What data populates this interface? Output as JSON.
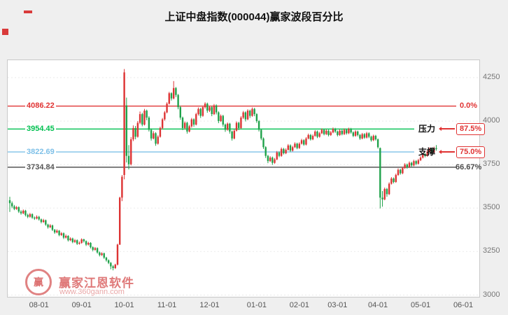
{
  "watermark": {
    "logo_text": "赢",
    "brand": "赢家江恩软件",
    "url": "www.360gann.com"
  },
  "chart_data": {
    "type": "candlestick",
    "title": "上证中盘指数(000044)赢家波段百分比",
    "y_ticks": [
      4250,
      4000,
      3750,
      3500,
      3250,
      3000
    ],
    "ylim": [
      2990,
      4350
    ],
    "x_ticks": {
      "labels": [
        "08-01",
        "09-01",
        "10-01",
        "11-01",
        "12-01",
        "01-01",
        "02-01",
        "03-01",
        "04-01",
        "05-01",
        "06-01"
      ],
      "candle_indices": [
        13,
        32,
        51,
        70,
        89,
        110,
        129,
        146,
        164,
        183,
        202
      ]
    },
    "up_color": "#dd3333",
    "down_color": "#1fa24a",
    "levels": [
      {
        "value": 4086.22,
        "label": "4086.22",
        "color": "#e03333",
        "right_label": "0.0%",
        "right_color": "#e03333",
        "annotation": null
      },
      {
        "value": 3954.45,
        "label": "3954.45",
        "color": "#00c050",
        "right_label": "87.5%",
        "right_color": "#e03333",
        "annotation": "压力"
      },
      {
        "value": 3822.69,
        "label": "3822.69",
        "color": "#7ec0e8",
        "right_label": "75.0%",
        "right_color": "#e03333",
        "annotation": "支撑"
      },
      {
        "value": 3734.84,
        "label": "3734.84",
        "color": "#555555",
        "right_label": "66.67%",
        "right_color": "#4a4a4a",
        "annotation": null
      }
    ],
    "ohlc": [
      [
        3545,
        3565,
        3478,
        3528
      ],
      [
        3528,
        3538,
        3500,
        3510
      ],
      [
        3510,
        3518,
        3488,
        3495
      ],
      [
        3495,
        3512,
        3490,
        3505
      ],
      [
        3505,
        3510,
        3472,
        3480
      ],
      [
        3480,
        3488,
        3462,
        3470
      ],
      [
        3470,
        3492,
        3465,
        3485
      ],
      [
        3485,
        3490,
        3452,
        3460
      ],
      [
        3460,
        3468,
        3442,
        3450
      ],
      [
        3450,
        3472,
        3445,
        3465
      ],
      [
        3465,
        3470,
        3438,
        3445
      ],
      [
        3445,
        3452,
        3432,
        3440
      ],
      [
        3440,
        3458,
        3435,
        3450
      ],
      [
        3450,
        3455,
        3428,
        3435
      ],
      [
        3435,
        3440,
        3412,
        3420
      ],
      [
        3420,
        3438,
        3415,
        3430
      ],
      [
        3430,
        3434,
        3398,
        3405
      ],
      [
        3405,
        3410,
        3382,
        3390
      ],
      [
        3390,
        3408,
        3385,
        3400
      ],
      [
        3400,
        3405,
        3368,
        3375
      ],
      [
        3375,
        3380,
        3352,
        3360
      ],
      [
        3360,
        3378,
        3355,
        3370
      ],
      [
        3370,
        3374,
        3338,
        3345
      ],
      [
        3345,
        3362,
        3340,
        3355
      ],
      [
        3355,
        3360,
        3322,
        3330
      ],
      [
        3330,
        3348,
        3325,
        3340
      ],
      [
        3340,
        3344,
        3308,
        3315
      ],
      [
        3315,
        3332,
        3310,
        3325
      ],
      [
        3325,
        3330,
        3298,
        3305
      ],
      [
        3305,
        3322,
        3300,
        3315
      ],
      [
        3315,
        3320,
        3288,
        3295
      ],
      [
        3295,
        3308,
        3290,
        3300
      ],
      [
        3300,
        3326,
        3295,
        3320
      ],
      [
        3320,
        3324,
        3302,
        3310
      ],
      [
        3310,
        3314,
        3282,
        3290
      ],
      [
        3290,
        3306,
        3285,
        3300
      ],
      [
        3300,
        3304,
        3268,
        3275
      ],
      [
        3275,
        3280,
        3252,
        3260
      ],
      [
        3260,
        3276,
        3255,
        3270
      ],
      [
        3270,
        3274,
        3238,
        3245
      ],
      [
        3245,
        3250,
        3222,
        3230
      ],
      [
        3230,
        3246,
        3225,
        3240
      ],
      [
        3240,
        3244,
        3208,
        3215
      ],
      [
        3215,
        3220,
        3192,
        3200
      ],
      [
        3200,
        3205,
        3178,
        3185
      ],
      [
        3185,
        3190,
        3148,
        3165
      ],
      [
        3165,
        3172,
        3142,
        3155
      ],
      [
        3155,
        3180,
        3150,
        3175
      ],
      [
        3175,
        3295,
        3170,
        3290
      ],
      [
        3290,
        3565,
        3288,
        3560
      ],
      [
        3560,
        3690,
        3540,
        3680
      ],
      [
        3690,
        4299,
        3665,
        4280
      ],
      [
        4090,
        4135,
        3762,
        3800
      ],
      [
        3800,
        3862,
        3722,
        3752
      ],
      [
        3752,
        3908,
        3745,
        3895
      ],
      [
        3895,
        3975,
        3885,
        3960
      ],
      [
        3960,
        3972,
        3895,
        3910
      ],
      [
        3910,
        4000,
        3905,
        3990
      ],
      [
        3990,
        4055,
        3982,
        4040
      ],
      [
        4040,
        4048,
        3970,
        3980
      ],
      [
        3980,
        4070,
        3975,
        4060
      ],
      [
        4060,
        4066,
        4005,
        4020
      ],
      [
        4020,
        4028,
        3940,
        3950
      ],
      [
        3950,
        3958,
        3888,
        3900
      ],
      [
        3900,
        3942,
        3895,
        3930
      ],
      [
        3930,
        3936,
        3858,
        3870
      ],
      [
        3870,
        3918,
        3865,
        3910
      ],
      [
        3910,
        3968,
        3905,
        3960
      ],
      [
        3960,
        4018,
        3952,
        4010
      ],
      [
        4010,
        4058,
        4002,
        4050
      ],
      [
        4050,
        4108,
        4045,
        4100
      ],
      [
        4100,
        4168,
        4095,
        4160
      ],
      [
        4160,
        4166,
        4118,
        4130
      ],
      [
        4130,
        4230,
        4125,
        4190
      ],
      [
        4190,
        4196,
        4138,
        4150
      ],
      [
        4150,
        4156,
        4068,
        4080
      ],
      [
        4080,
        4088,
        4008,
        4020
      ],
      [
        4020,
        4026,
        3948,
        3960
      ],
      [
        3960,
        3998,
        3952,
        3990
      ],
      [
        3990,
        3996,
        3928,
        3940
      ],
      [
        3940,
        3978,
        3935,
        3970
      ],
      [
        3970,
        4018,
        3962,
        4010
      ],
      [
        4010,
        4016,
        3968,
        3980
      ],
      [
        3980,
        4048,
        3975,
        4040
      ],
      [
        4040,
        4078,
        4032,
        4070
      ],
      [
        4070,
        4076,
        4018,
        4030
      ],
      [
        4030,
        4088,
        4025,
        4080
      ],
      [
        4080,
        4108,
        4072,
        4100
      ],
      [
        4100,
        4106,
        4048,
        4060
      ],
      [
        4060,
        4088,
        4052,
        4080
      ],
      [
        4080,
        4086,
        4028,
        4040
      ],
      [
        4040,
        4098,
        4035,
        4090
      ],
      [
        4090,
        4096,
        4038,
        4050
      ],
      [
        4050,
        4056,
        3988,
        4000
      ],
      [
        4000,
        4038,
        3995,
        4030
      ],
      [
        4030,
        4036,
        3968,
        3980
      ],
      [
        3980,
        3986,
        3938,
        3950
      ],
      [
        3950,
        3992,
        3945,
        3985
      ],
      [
        3985,
        3990,
        3928,
        3940
      ],
      [
        3940,
        3946,
        3888,
        3900
      ],
      [
        3900,
        3952,
        3895,
        3945
      ],
      [
        3945,
        3998,
        3940,
        3990
      ],
      [
        3990,
        3996,
        3948,
        3960
      ],
      [
        3960,
        4028,
        3955,
        4020
      ],
      [
        4020,
        4058,
        4012,
        4050
      ],
      [
        4050,
        4056,
        3998,
        4010
      ],
      [
        4010,
        4068,
        4005,
        4060
      ],
      [
        4060,
        4066,
        4018,
        4030
      ],
      [
        4030,
        4078,
        4025,
        4070
      ],
      [
        4070,
        4076,
        4028,
        4040
      ],
      [
        4040,
        4046,
        3990,
        4000
      ],
      [
        4000,
        4006,
        3940,
        3950
      ],
      [
        3950,
        3956,
        3890,
        3900
      ],
      [
        3900,
        3906,
        3840,
        3850
      ],
      [
        3850,
        3856,
        3788,
        3800
      ],
      [
        3800,
        3806,
        3758,
        3770
      ],
      [
        3770,
        3798,
        3765,
        3790
      ],
      [
        3790,
        3796,
        3748,
        3760
      ],
      [
        3760,
        3788,
        3755,
        3780
      ],
      [
        3780,
        3828,
        3775,
        3820
      ],
      [
        3820,
        3826,
        3792,
        3800
      ],
      [
        3800,
        3848,
        3795,
        3840
      ],
      [
        3840,
        3846,
        3808,
        3815
      ],
      [
        3815,
        3843,
        3810,
        3835
      ],
      [
        3835,
        3868,
        3830,
        3860
      ],
      [
        3860,
        3866,
        3822,
        3830
      ],
      [
        3830,
        3858,
        3825,
        3850
      ],
      [
        3850,
        3878,
        3845,
        3870
      ],
      [
        3870,
        3876,
        3838,
        3845
      ],
      [
        3845,
        3878,
        3840,
        3870
      ],
      [
        3870,
        3898,
        3865,
        3890
      ],
      [
        3890,
        3896,
        3858,
        3865
      ],
      [
        3865,
        3908,
        3860,
        3900
      ],
      [
        3900,
        3928,
        3895,
        3920
      ],
      [
        3920,
        3926,
        3888,
        3895
      ],
      [
        3895,
        3923,
        3890,
        3915
      ],
      [
        3915,
        3948,
        3910,
        3940
      ],
      [
        3940,
        3946,
        3902,
        3910
      ],
      [
        3910,
        3938,
        3905,
        3930
      ],
      [
        3930,
        3958,
        3925,
        3950
      ],
      [
        3950,
        3956,
        3918,
        3925
      ],
      [
        3925,
        3953,
        3920,
        3945
      ],
      [
        3945,
        3951,
        3912,
        3920
      ],
      [
        3920,
        3943,
        3915,
        3935
      ],
      [
        3935,
        3963,
        3930,
        3955
      ],
      [
        3955,
        3961,
        3932,
        3940
      ],
      [
        3940,
        3946,
        3912,
        3920
      ],
      [
        3920,
        3953,
        3915,
        3945
      ],
      [
        3945,
        3951,
        3918,
        3925
      ],
      [
        3925,
        3958,
        3920,
        3950
      ],
      [
        3950,
        3956,
        3922,
        3930
      ],
      [
        3930,
        3962,
        3925,
        3955
      ],
      [
        3955,
        3961,
        3928,
        3935
      ],
      [
        3935,
        3941,
        3908,
        3915
      ],
      [
        3915,
        3948,
        3910,
        3940
      ],
      [
        3940,
        3946,
        3912,
        3920
      ],
      [
        3920,
        3926,
        3892,
        3900
      ],
      [
        3900,
        3932,
        3895,
        3925
      ],
      [
        3925,
        3931,
        3898,
        3905
      ],
      [
        3905,
        3938,
        3900,
        3930
      ],
      [
        3930,
        3936,
        3902,
        3910
      ],
      [
        3910,
        3916,
        3882,
        3890
      ],
      [
        3890,
        3922,
        3885,
        3915
      ],
      [
        3915,
        3921,
        3888,
        3895
      ],
      [
        3895,
        3900,
        3842,
        3850
      ],
      [
        3845,
        3848,
        3498,
        3560
      ],
      [
        3560,
        3598,
        3508,
        3550
      ],
      [
        3550,
        3618,
        3545,
        3610
      ],
      [
        3610,
        3616,
        3565,
        3580
      ],
      [
        3580,
        3648,
        3575,
        3640
      ],
      [
        3640,
        3678,
        3635,
        3670
      ],
      [
        3670,
        3676,
        3642,
        3650
      ],
      [
        3650,
        3698,
        3645,
        3690
      ],
      [
        3690,
        3728,
        3685,
        3720
      ],
      [
        3720,
        3726,
        3692,
        3700
      ],
      [
        3700,
        3738,
        3695,
        3730
      ],
      [
        3730,
        3758,
        3725,
        3750
      ],
      [
        3750,
        3756,
        3726,
        3735
      ],
      [
        3735,
        3768,
        3730,
        3760
      ],
      [
        3760,
        3766,
        3736,
        3745
      ],
      [
        3745,
        3778,
        3740,
        3770
      ],
      [
        3770,
        3776,
        3746,
        3755
      ],
      [
        3755,
        3783,
        3750,
        3775
      ],
      [
        3775,
        3798,
        3770,
        3790
      ],
      [
        3790,
        3818,
        3785,
        3810
      ],
      [
        3810,
        3816,
        3792,
        3800
      ],
      [
        3800,
        3833,
        3795,
        3825
      ],
      [
        3825,
        3848,
        3820,
        3840
      ],
      [
        3840,
        3846,
        3812,
        3820
      ],
      [
        3820,
        3853,
        3815,
        3845
      ],
      [
        3845,
        3862,
        3830,
        3840
      ]
    ]
  }
}
